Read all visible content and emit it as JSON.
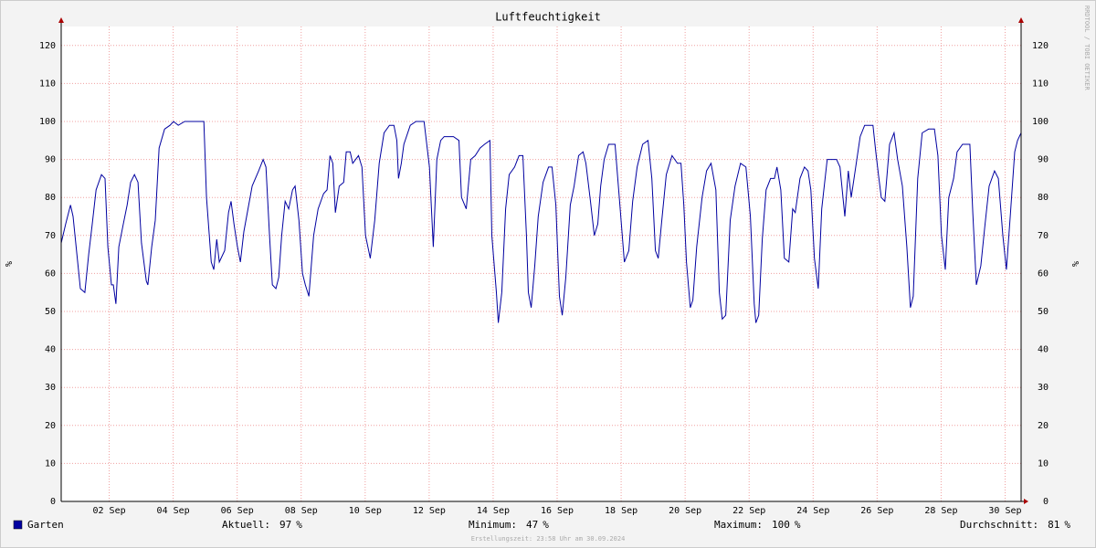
{
  "chart_data": {
    "type": "line",
    "title": "Luftfeuchtigkeit",
    "ylabel": "%",
    "watermark": "RRDTOOL / TOBI OETIKER",
    "footer": "Erstellungszeit: 23:58 Uhr am 30.09.2024",
    "xlim": [
      1,
      31
    ],
    "ylim": [
      0,
      125
    ],
    "yticks": [
      0,
      10,
      20,
      30,
      40,
      50,
      60,
      70,
      80,
      90,
      100,
      110,
      120
    ],
    "xticks": [
      {
        "value": 2.5,
        "label": "02 Sep"
      },
      {
        "value": 4.5,
        "label": "04 Sep"
      },
      {
        "value": 6.5,
        "label": "06 Sep"
      },
      {
        "value": 8.5,
        "label": "08 Sep"
      },
      {
        "value": 10.5,
        "label": "10 Sep"
      },
      {
        "value": 12.5,
        "label": "12 Sep"
      },
      {
        "value": 14.5,
        "label": "14 Sep"
      },
      {
        "value": 16.5,
        "label": "16 Sep"
      },
      {
        "value": 18.5,
        "label": "18 Sep"
      },
      {
        "value": 20.5,
        "label": "20 Sep"
      },
      {
        "value": 22.5,
        "label": "22 Sep"
      },
      {
        "value": 24.5,
        "label": "24 Sep"
      },
      {
        "value": 26.5,
        "label": "26 Sep"
      },
      {
        "value": 28.5,
        "label": "28 Sep"
      },
      {
        "value": 30.5,
        "label": "30 Sep"
      }
    ],
    "grid": true,
    "x": [
      1.0,
      1.14,
      1.29,
      1.37,
      1.49,
      1.6,
      1.74,
      1.86,
      1.97,
      2.09,
      2.26,
      2.37,
      2.46,
      2.57,
      2.63,
      2.71,
      2.8,
      2.94,
      3.06,
      3.17,
      3.29,
      3.4,
      3.51,
      3.66,
      3.71,
      3.83,
      3.94,
      4.06,
      4.23,
      4.4,
      4.51,
      4.66,
      4.86,
      5.46,
      5.54,
      5.69,
      5.77,
      5.86,
      5.94,
      6.11,
      6.23,
      6.31,
      6.4,
      6.51,
      6.6,
      6.71,
      6.86,
      6.97,
      7.17,
      7.31,
      7.4,
      7.51,
      7.6,
      7.71,
      7.8,
      7.89,
      8.0,
      8.11,
      8.23,
      8.31,
      8.43,
      8.54,
      8.63,
      8.74,
      8.89,
      9.03,
      9.2,
      9.31,
      9.4,
      9.49,
      9.57,
      9.69,
      9.83,
      9.91,
      10.03,
      10.11,
      10.29,
      10.4,
      10.51,
      10.66,
      10.8,
      10.94,
      11.09,
      11.26,
      11.4,
      11.49,
      11.54,
      11.63,
      11.71,
      11.91,
      12.09,
      12.34,
      12.51,
      12.63,
      12.74,
      12.86,
      12.97,
      13.26,
      13.43,
      13.51,
      13.66,
      13.8,
      13.94,
      14.09,
      14.23,
      14.4,
      14.46,
      14.6,
      14.66,
      14.77,
      14.89,
      15.0,
      15.17,
      15.31,
      15.43,
      15.54,
      15.6,
      15.69,
      15.8,
      15.91,
      16.06,
      16.23,
      16.34,
      16.46,
      16.57,
      16.66,
      16.77,
      16.91,
      17.03,
      17.17,
      17.31,
      17.4,
      17.54,
      17.66,
      17.77,
      17.86,
      17.97,
      18.11,
      18.31,
      18.46,
      18.6,
      18.74,
      18.86,
      19.0,
      19.17,
      19.34,
      19.46,
      19.57,
      19.66,
      19.77,
      19.91,
      20.09,
      20.26,
      20.37,
      20.46,
      20.54,
      20.66,
      20.74,
      20.86,
      21.03,
      21.17,
      21.31,
      21.46,
      21.57,
      21.66,
      21.77,
      21.91,
      22.06,
      22.23,
      22.4,
      22.54,
      22.66,
      22.71,
      22.8,
      22.91,
      23.03,
      23.17,
      23.29,
      23.37,
      23.49,
      23.6,
      23.74,
      23.86,
      23.94,
      24.09,
      24.23,
      24.34,
      24.43,
      24.54,
      24.66,
      24.77,
      24.94,
      25.09,
      25.23,
      25.34,
      25.49,
      25.6,
      25.69,
      25.83,
      25.97,
      26.11,
      26.37,
      26.46,
      26.54,
      26.63,
      26.74,
      26.89,
      27.03,
      27.14,
      27.29,
      27.43,
      27.54,
      27.63,
      27.77,
      27.91,
      28.11,
      28.29,
      28.4,
      28.51,
      28.63,
      28.74,
      28.89,
      29.0,
      29.17,
      29.4,
      29.49,
      29.6,
      29.74,
      29.86,
      30.0,
      30.17,
      30.29,
      30.43,
      30.54,
      30.66,
      30.8,
      30.89,
      31.0
    ],
    "series": [
      {
        "name": "Garten",
        "color": "#0000a0",
        "values": [
          68,
          73,
          78,
          75,
          65,
          56,
          55,
          65,
          73,
          82,
          86,
          85,
          67,
          57,
          57,
          52,
          67,
          73,
          78,
          84,
          86,
          84,
          68,
          58,
          57,
          67,
          74,
          93,
          98,
          99,
          100,
          99,
          100,
          100,
          80,
          63,
          61,
          69,
          63,
          66,
          76,
          79,
          73,
          67,
          63,
          71,
          78,
          83,
          87,
          90,
          88,
          70,
          57,
          56,
          59,
          70,
          79,
          77,
          82,
          83,
          74,
          60,
          57,
          54,
          70,
          77,
          81,
          82,
          91,
          89,
          76,
          83,
          84,
          92,
          92,
          89,
          91,
          88,
          70,
          64,
          74,
          89,
          97,
          99,
          99,
          95,
          85,
          89,
          94,
          99,
          100,
          100,
          88,
          67,
          90,
          95,
          96,
          96,
          95,
          80,
          77,
          90,
          91,
          93,
          94,
          95,
          70,
          55,
          47,
          55,
          77,
          86,
          88,
          91,
          91,
          70,
          55,
          51,
          62,
          75,
          84,
          88,
          88,
          78,
          54,
          49,
          59,
          78,
          83,
          91,
          92,
          89,
          79,
          70,
          73,
          83,
          90,
          94,
          94,
          78,
          63,
          66,
          79,
          88,
          94,
          95,
          85,
          66,
          64,
          74,
          86,
          91,
          89,
          89,
          78,
          63,
          51,
          53,
          67,
          80,
          87,
          89,
          82,
          55,
          48,
          49,
          74,
          83,
          89,
          88,
          75,
          52,
          47,
          49,
          69,
          82,
          85,
          85,
          88,
          82,
          64,
          63,
          77,
          76,
          85,
          88,
          87,
          82,
          64,
          56,
          77,
          90,
          90,
          90,
          88,
          75,
          87,
          80,
          88,
          96,
          99,
          99,
          92,
          86,
          80,
          79,
          94,
          97,
          90,
          83,
          67,
          51,
          54,
          85,
          97,
          98,
          98,
          91,
          70,
          61,
          80,
          85,
          92,
          94,
          94,
          76,
          57,
          62,
          72,
          83,
          87,
          85,
          70,
          61,
          75,
          92,
          95,
          97
        ]
      }
    ],
    "legend_stats": [
      {
        "label": "Aktuell:",
        "value": 97,
        "unit": "%"
      },
      {
        "label": "Minimum:",
        "value": 47,
        "unit": "%"
      },
      {
        "label": "Maximum:",
        "value": 100,
        "unit": "%"
      },
      {
        "label": "Durchschnitt:",
        "value": 81,
        "unit": "%"
      }
    ]
  }
}
